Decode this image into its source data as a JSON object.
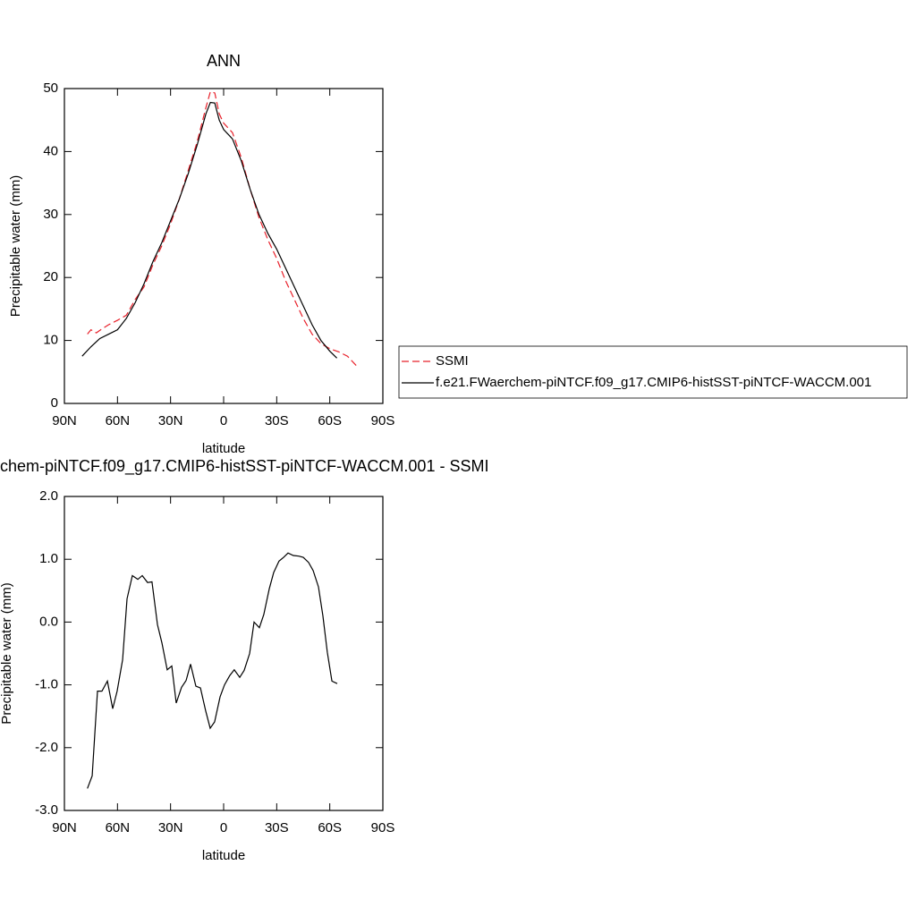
{
  "chart_data": [
    {
      "type": "line",
      "title": "ANN",
      "xlabel": "latitude",
      "ylabel": "Precipitable water (mm)",
      "xlim": [
        90,
        -90
      ],
      "xticks": [
        {
          "value": 90,
          "label": "90N"
        },
        {
          "value": 60,
          "label": "60N"
        },
        {
          "value": 30,
          "label": "30N"
        },
        0,
        {
          "value": -30,
          "label": "30S"
        },
        {
          "value": -60,
          "label": "60S"
        },
        {
          "value": -90,
          "label": "90S"
        }
      ],
      "ylim": [
        0,
        50
      ],
      "yticks": [
        0,
        10,
        20,
        30,
        40,
        50
      ],
      "legend": "right",
      "series": [
        {
          "name": "SSMI",
          "color": "#e8202a",
          "line_style": "dashed",
          "x": [
            77,
            75,
            72,
            70,
            65,
            60,
            55,
            50,
            45,
            40,
            35,
            30,
            25,
            20,
            15,
            10,
            7.5,
            5,
            2.5,
            0,
            -5,
            -10,
            -15,
            -20,
            -25,
            -30,
            -35,
            -40,
            -45,
            -50,
            -55,
            -60,
            -65,
            -70,
            -75
          ],
          "values": [
            11.0,
            11.7,
            11.2,
            11.6,
            12.5,
            13.2,
            14.0,
            16.5,
            18.5,
            22.0,
            25.0,
            28.5,
            32.5,
            37.0,
            41.5,
            47.0,
            49.5,
            49.3,
            46.0,
            44.5,
            43.0,
            39.0,
            34.0,
            29.5,
            26.0,
            23.0,
            19.5,
            16.5,
            13.5,
            11.0,
            9.5,
            8.7,
            8.2,
            7.5,
            6.0
          ]
        },
        {
          "name": "f.e21.FWaerchem-piNTCF.f09_g17.CMIP6-histSST-piNTCF-WACCM.001",
          "color": "#000000",
          "line_style": "solid",
          "x": [
            80,
            75,
            70,
            65,
            60,
            55,
            50,
            45,
            40,
            35,
            30,
            25,
            20,
            15,
            10,
            7.5,
            5,
            2.5,
            0,
            -5,
            -10,
            -15,
            -20,
            -25,
            -30,
            -35,
            -40,
            -45,
            -50,
            -55,
            -60,
            -64
          ],
          "values": [
            7.5,
            9.0,
            10.3,
            11.0,
            11.7,
            13.5,
            16.0,
            19.0,
            22.5,
            25.5,
            29.0,
            32.5,
            36.5,
            41.0,
            46.0,
            47.8,
            47.7,
            45.0,
            43.5,
            42.0,
            38.5,
            34.0,
            30.0,
            27.0,
            24.5,
            21.5,
            18.5,
            15.5,
            12.5,
            10.0,
            8.3,
            7.2
          ]
        }
      ]
    },
    {
      "type": "line",
      "title": "chem-piNTCF.f09_g17.CMIP6-histSST-piNTCF-WACCM.001 - SSMI",
      "xlabel": "latitude",
      "ylabel": "Precipitable water (mm)",
      "xlim": [
        90,
        -90
      ],
      "xticks": [
        {
          "value": 90,
          "label": "90N"
        },
        {
          "value": 60,
          "label": "60N"
        },
        {
          "value": 30,
          "label": "30N"
        },
        0,
        {
          "value": -30,
          "label": "30S"
        },
        {
          "value": -60,
          "label": "60S"
        },
        {
          "value": -90,
          "label": "90S"
        }
      ],
      "ylim": [
        -3,
        2
      ],
      "yticks": [
        {
          "value": -3,
          "label": "-3.0"
        },
        {
          "value": -2,
          "label": "-2.0"
        },
        {
          "value": -1,
          "label": "-1.0"
        },
        {
          "value": 0,
          "label": "0.0"
        },
        {
          "value": 1,
          "label": "1.0"
        },
        {
          "value": 2,
          "label": "2.0"
        }
      ],
      "series": [
        {
          "color": "#000000",
          "line_style": "solid",
          "x": [
            77,
            74.3,
            71.3,
            68.8,
            65.7,
            62.7,
            60.2,
            57.1,
            54.6,
            51.6,
            48.5,
            46,
            43,
            40.5,
            37.4,
            34.9,
            31.9,
            29.3,
            26.8,
            23.8,
            21.2,
            18.7,
            15.7,
            13.1,
            10.1,
            7.6,
            5.1,
            2.0,
            -0.5,
            -3.5,
            -6.0,
            -9.1,
            -11.6,
            -14.7,
            -17.2,
            -20.2,
            -22.7,
            -25.8,
            -28.3,
            -31.3,
            -33.9,
            -36.4,
            -39.4,
            -42.5,
            -45,
            -48,
            -50.6,
            -53.6,
            -56.1,
            -58.6,
            -61.2,
            -64.2
          ],
          "values": [
            -2.65,
            -2.45,
            -1.1,
            -1.1,
            -0.94,
            -1.38,
            -1.1,
            -0.6,
            0.37,
            0.74,
            0.68,
            0.74,
            0.63,
            0.64,
            -0.04,
            -0.33,
            -0.76,
            -0.7,
            -1.29,
            -1.04,
            -0.93,
            -0.67,
            -1.02,
            -1.05,
            -1.42,
            -1.69,
            -1.59,
            -1.19,
            -1.0,
            -0.85,
            -0.76,
            -0.88,
            -0.77,
            -0.5,
            0.0,
            -0.09,
            0.12,
            0.53,
            0.79,
            0.97,
            1.03,
            1.1,
            1.06,
            1.05,
            1.03,
            0.95,
            0.82,
            0.56,
            0.1,
            -0.48,
            -0.94,
            -0.98
          ]
        }
      ]
    }
  ]
}
